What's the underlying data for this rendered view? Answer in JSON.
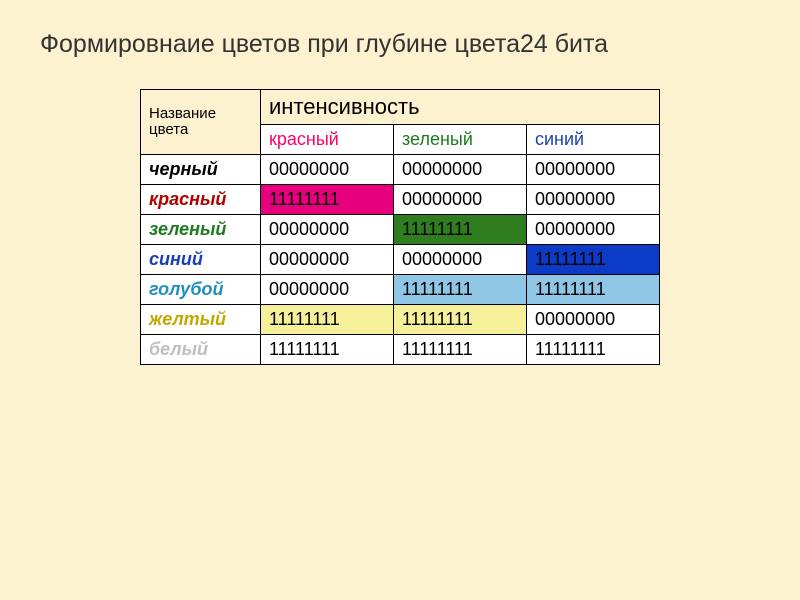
{
  "slide_background": "#fdf2d0",
  "title": "Формировнаие цветов при глубине цвета24 бита",
  "title_color": "#333333",
  "header": {
    "name_label": "Название цвета",
    "intensity_label": "интенсивность",
    "channels": [
      {
        "label": "красный",
        "color": "#ff0066"
      },
      {
        "label": "зеленый",
        "color": "#1f7a1f"
      },
      {
        "label": "синий",
        "color": "#1a3fb3"
      }
    ]
  },
  "rows": [
    {
      "name": "черный",
      "name_color": "#000000",
      "row_bg": "#ffffff",
      "cells": [
        {
          "value": "00000000",
          "bg": "#ffffff",
          "fg": "#000000"
        },
        {
          "value": "00000000",
          "bg": "#ffffff",
          "fg": "#000000"
        },
        {
          "value": "00000000",
          "bg": "#ffffff",
          "fg": "#000000"
        }
      ]
    },
    {
      "name": "красный",
      "name_color": "#b30000",
      "row_bg": "#ffffff",
      "cells": [
        {
          "value": "11111111",
          "bg": "#e6007e",
          "fg": "#000000"
        },
        {
          "value": "00000000",
          "bg": "#ffffff",
          "fg": "#000000"
        },
        {
          "value": "00000000",
          "bg": "#ffffff",
          "fg": "#000000"
        }
      ]
    },
    {
      "name": "зеленый",
      "name_color": "#1f7a1f",
      "row_bg": "#ffffff",
      "cells": [
        {
          "value": "00000000",
          "bg": "#ffffff",
          "fg": "#000000"
        },
        {
          "value": "11111111",
          "bg": "#2f7d1f",
          "fg": "#000000"
        },
        {
          "value": "00000000",
          "bg": "#ffffff",
          "fg": "#000000"
        }
      ]
    },
    {
      "name": "синий",
      "name_color": "#1a3fb3",
      "row_bg": "#ffffff",
      "cells": [
        {
          "value": "00000000",
          "bg": "#ffffff",
          "fg": "#000000"
        },
        {
          "value": "00000000",
          "bg": "#ffffff",
          "fg": "#000000"
        },
        {
          "value": "11111111",
          "bg": "#0b3ac4",
          "fg": "#000000"
        }
      ]
    },
    {
      "name": "голубой",
      "name_color": "#1f8fbf",
      "row_bg": "#ffffff",
      "cells": [
        {
          "value": "00000000",
          "bg": "#ffffff",
          "fg": "#000000"
        },
        {
          "value": "11111111",
          "bg": "#8fc6e6",
          "fg": "#000000"
        },
        {
          "value": "11111111",
          "bg": "#8fc6e6",
          "fg": "#000000"
        }
      ]
    },
    {
      "name": "желтый",
      "name_color": "#c2a800",
      "row_bg": "#ffffff",
      "cells": [
        {
          "value": "11111111",
          "bg": "#f5f099",
          "fg": "#000000"
        },
        {
          "value": "11111111",
          "bg": "#f5f099",
          "fg": "#000000"
        },
        {
          "value": "00000000",
          "bg": "#ffffff",
          "fg": "#000000"
        }
      ]
    },
    {
      "name": "белый",
      "name_color": "#bfbfbf",
      "row_bg": "#ffffff",
      "cells": [
        {
          "value": "11111111",
          "bg": "#ffffff",
          "fg": "#000000"
        },
        {
          "value": "11111111",
          "bg": "#ffffff",
          "fg": "#000000"
        },
        {
          "value": "11111111",
          "bg": "#ffffff",
          "fg": "#000000"
        }
      ]
    }
  ]
}
